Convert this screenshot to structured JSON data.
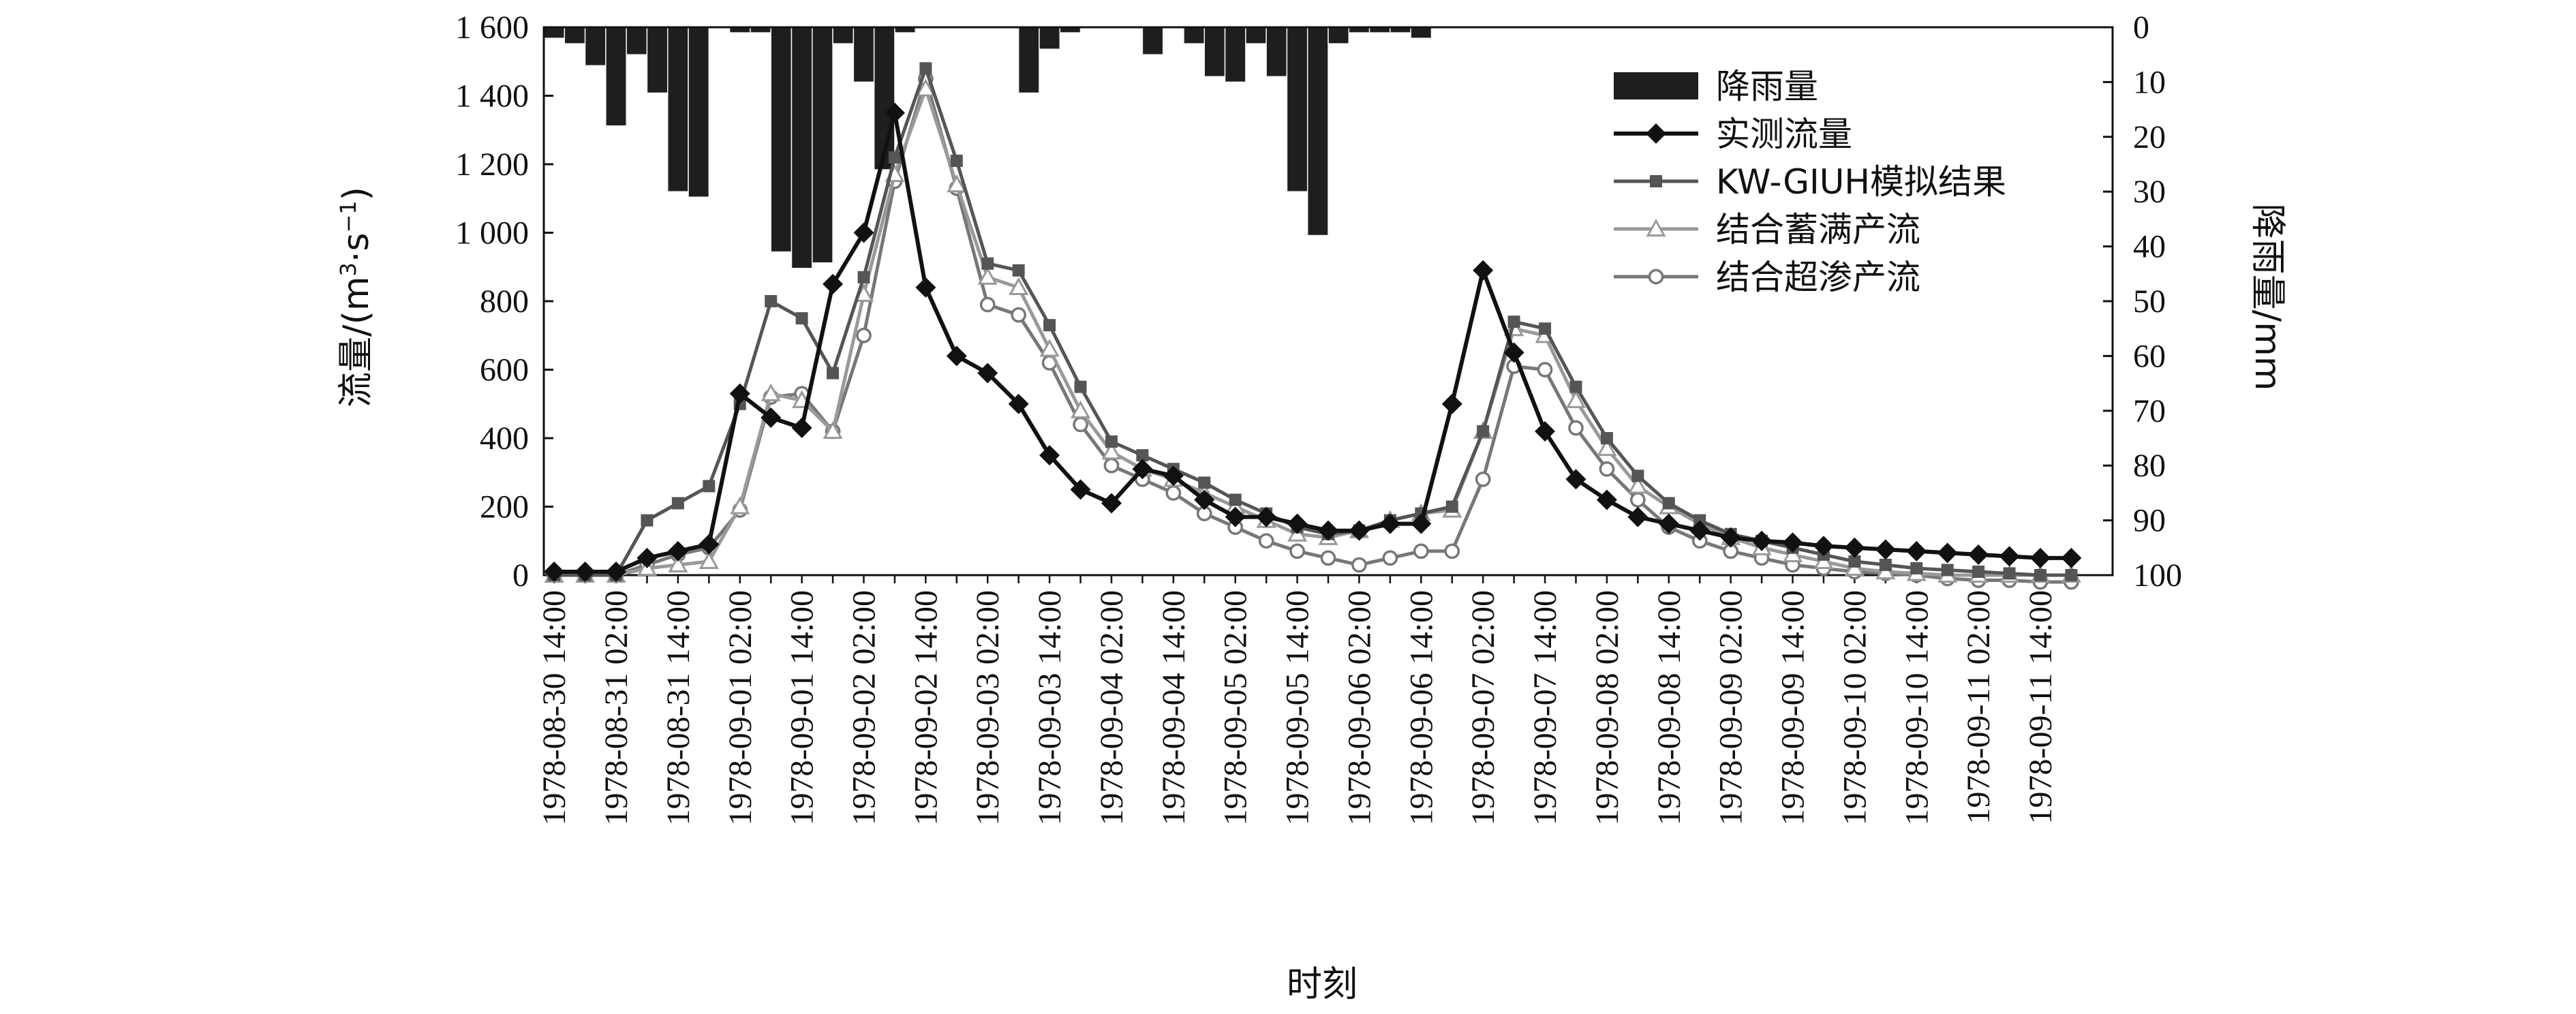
{
  "chart_data": {
    "type": "line",
    "title": "",
    "xlabel": "时刻",
    "ylabel": "流量/(m³·s⁻¹)",
    "ylabel_parts": {
      "base": "流量/(m",
      "sup1": "3",
      "mid": "·s",
      "sup2": "−1",
      "end": ")"
    },
    "y2label": "降雨量/mm",
    "ylim": [
      0,
      1600
    ],
    "y2lim": [
      0,
      100
    ],
    "y2_inverted": true,
    "legend_position": "top-right",
    "yticks": [
      "0",
      "200",
      "400",
      "600",
      "800",
      "1 000",
      "1 200",
      "1 400",
      "1 600"
    ],
    "y2ticks": [
      "0",
      "10",
      "20",
      "30",
      "40",
      "50",
      "60",
      "70",
      "80",
      "90",
      "100"
    ],
    "xtick_labels": [
      "1978-08-30 14:00",
      "1978-08-31 02:00",
      "1978-08-31 14:00",
      "1978-09-01 02:00",
      "1978-09-01 14:00",
      "1978-09-02 02:00",
      "1978-09-02 14:00",
      "1978-09-03 02:00",
      "1978-09-03 14:00",
      "1978-09-04 02:00",
      "1978-09-04 14:00",
      "1978-09-05 02:00",
      "1978-09-05 14:00",
      "1978-09-06 02:00",
      "1978-09-06 14:00",
      "1978-09-07 02:00",
      "1978-09-07 14:00",
      "1978-09-08 02:00",
      "1978-09-08 14:00",
      "1978-09-09 02:00",
      "1978-09-09 14:00",
      "1978-09-10 02:00",
      "1978-09-10 14:00",
      "1978-09-11 02:00",
      "1978-09-11 14:00"
    ],
    "x_step_hours": 6,
    "rainfall": {
      "name": "降雨量",
      "values": [
        2,
        3,
        7,
        18,
        5,
        12,
        30,
        31,
        0,
        1,
        1,
        41,
        44,
        43,
        3,
        10,
        26,
        1,
        0,
        0,
        0,
        0,
        0,
        12,
        4,
        1,
        0,
        0,
        0,
        5,
        0,
        3,
        9,
        10,
        3,
        9,
        30,
        38,
        3,
        1,
        1,
        1,
        2,
        0,
        0,
        0,
        0,
        0,
        0,
        0,
        0,
        0,
        0,
        0,
        0,
        0,
        0,
        0,
        0,
        0,
        0,
        0,
        0,
        0,
        0,
        0,
        0,
        0,
        0,
        0,
        0,
        0,
        0,
        0,
        0,
        0
      ]
    },
    "series": [
      {
        "name": "实测流量",
        "marker": "diamond",
        "color": "#111111",
        "values": [
          10,
          10,
          10,
          50,
          70,
          90,
          530,
          460,
          430,
          850,
          1000,
          1350,
          840,
          640,
          590,
          500,
          350,
          250,
          210,
          310,
          290,
          220,
          170,
          170,
          150,
          130,
          130,
          150,
          150,
          500,
          890,
          650,
          420,
          280,
          220,
          170,
          150,
          130,
          110,
          100,
          95,
          85,
          80,
          75,
          70,
          65,
          60,
          55,
          50,
          50
        ]
      },
      {
        "name": "KW-GIUH模拟结果",
        "marker": "square",
        "color": "#555555",
        "values": [
          0,
          0,
          0,
          160,
          210,
          260,
          500,
          800,
          750,
          590,
          870,
          1220,
          1480,
          1210,
          910,
          890,
          730,
          550,
          390,
          350,
          310,
          270,
          220,
          180,
          140,
          120,
          130,
          160,
          180,
          200,
          420,
          740,
          720,
          550,
          400,
          290,
          210,
          160,
          120,
          100,
          80,
          60,
          40,
          30,
          20,
          15,
          10,
          5,
          0,
          0
        ]
      },
      {
        "name": "结合蓄满产流",
        "marker": "triangle",
        "color": "#999999",
        "values": [
          0,
          0,
          0,
          20,
          30,
          40,
          200,
          530,
          510,
          420,
          820,
          1170,
          1420,
          1140,
          870,
          840,
          660,
          480,
          360,
          310,
          280,
          240,
          200,
          160,
          120,
          110,
          130,
          160,
          180,
          190,
          420,
          720,
          700,
          510,
          370,
          260,
          200,
          150,
          110,
          80,
          60,
          40,
          20,
          10,
          5,
          0,
          0,
          0,
          0,
          0
        ]
      },
      {
        "name": "结合超渗产流",
        "marker": "circle",
        "color": "#777777",
        "values": [
          0,
          0,
          0,
          30,
          60,
          80,
          190,
          520,
          530,
          420,
          700,
          1150,
          1450,
          1130,
          790,
          760,
          620,
          440,
          320,
          280,
          240,
          180,
          140,
          100,
          70,
          50,
          30,
          50,
          70,
          70,
          280,
          610,
          600,
          430,
          310,
          220,
          140,
          100,
          70,
          50,
          30,
          20,
          10,
          5,
          0,
          -10,
          -15,
          -15,
          -20,
          -20
        ]
      }
    ]
  }
}
